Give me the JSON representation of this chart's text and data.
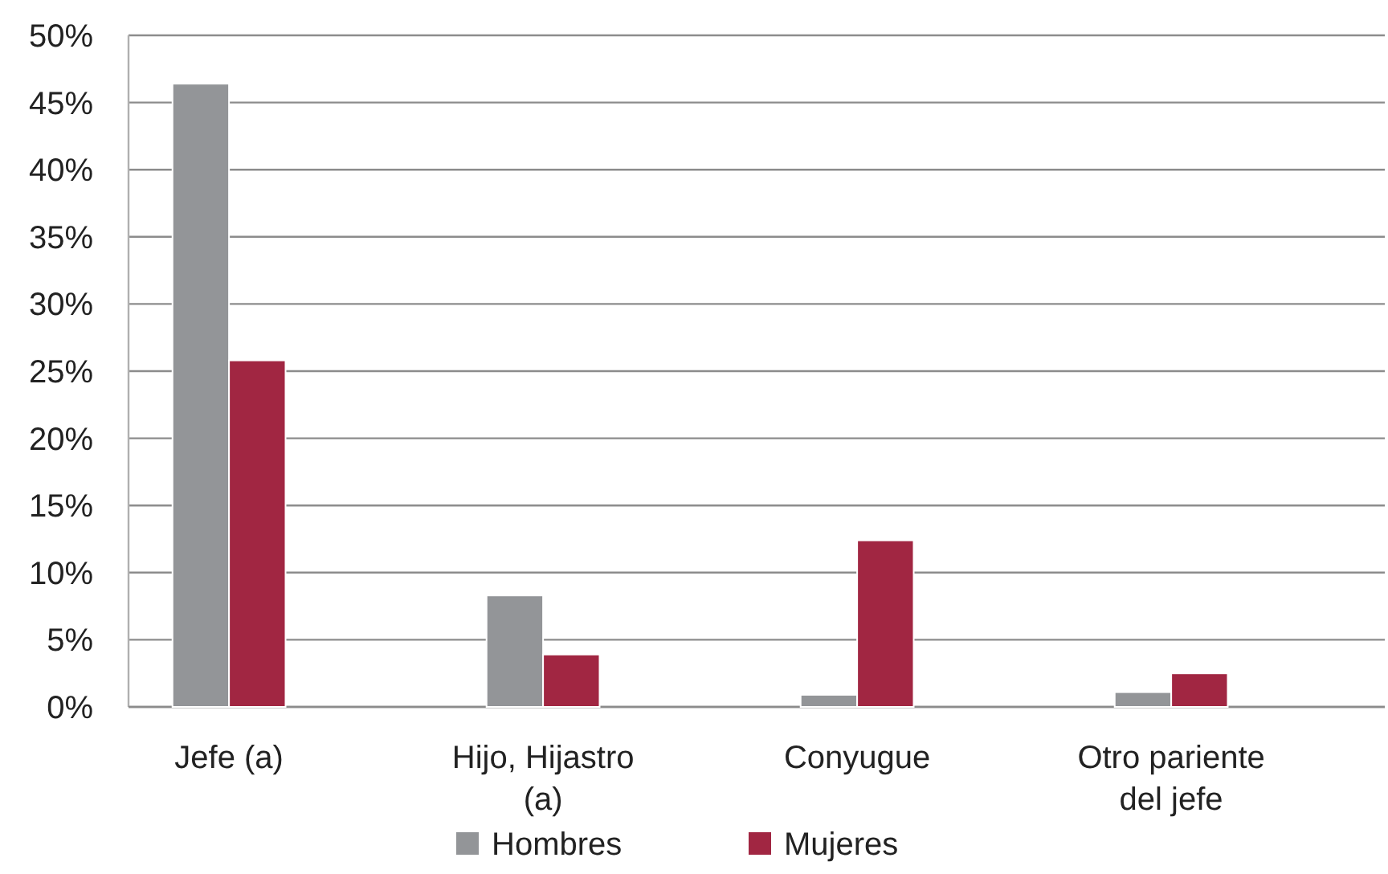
{
  "chart_data": {
    "type": "bar",
    "categories": [
      "Jefe (a)",
      "Hijo, Hijastro (a)",
      "Conyugue",
      "Otro pariente del jefe"
    ],
    "series": [
      {
        "name": "Hombres",
        "color": "#939598",
        "values": [
          46.4,
          8.3,
          0.9,
          1.1
        ]
      },
      {
        "name": "Mujeres",
        "color": "#a12642",
        "values": [
          25.8,
          3.9,
          12.4,
          2.5
        ]
      }
    ],
    "ylim": [
      0,
      50
    ],
    "yticks": [
      {
        "value": 0,
        "label": "0%"
      },
      {
        "value": 5,
        "label": "5%"
      },
      {
        "value": 10,
        "label": "10%"
      },
      {
        "value": 15,
        "label": "15%"
      },
      {
        "value": 20,
        "label": "20%"
      },
      {
        "value": 25,
        "label": "25%"
      },
      {
        "value": 30,
        "label": "30%"
      },
      {
        "value": 35,
        "label": "35%"
      },
      {
        "value": 40,
        "label": "40%"
      },
      {
        "value": 45,
        "label": "45%"
      },
      {
        "value": 50,
        "label": "50%"
      }
    ],
    "grid": "y",
    "legend": "bottom"
  }
}
